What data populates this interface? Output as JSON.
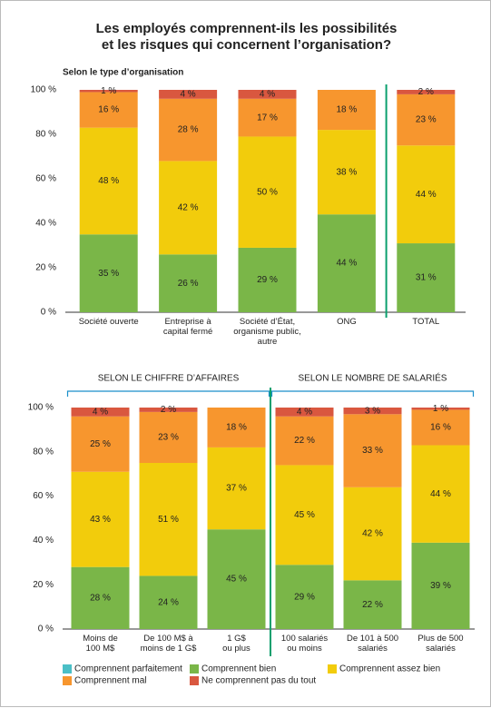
{
  "title": "Les employés comprennent-ils les possibilités\net les risques qui concernent l’organisation?",
  "chart_data": [
    {
      "type": "bar",
      "stacked": true,
      "subtitle": "Selon le type d’organisation",
      "categories": [
        "Société ouverte",
        "Entreprise à\ncapital fermé",
        "Société d’État,\norganisme public,\nautre",
        "ONG",
        "TOTAL"
      ],
      "ylim": [
        0,
        100
      ],
      "yticks": [
        {
          "value": 0,
          "label": "0 %"
        },
        {
          "value": 20,
          "label": "20 %"
        },
        {
          "value": 40,
          "label": "40 %"
        },
        {
          "value": 60,
          "label": "60 %"
        },
        {
          "value": 80,
          "label": "80 %"
        },
        {
          "value": 100,
          "label": "100 %"
        }
      ],
      "series": [
        {
          "name": "Comprennent parfaitement",
          "color": "#4bbfc6",
          "values": [
            null,
            null,
            null,
            null,
            null
          ],
          "value_labels": [
            null,
            null,
            null,
            null,
            null
          ]
        },
        {
          "name": "Comprennent bien",
          "color": "#7ab648",
          "values": [
            35,
            26,
            29,
            44,
            31
          ],
          "value_labels": [
            "35 %",
            "26 %",
            "29 %",
            "44 %",
            "31 %"
          ]
        },
        {
          "name": "Comprennent assez bien",
          "color": "#f2cc0c",
          "values": [
            48,
            42,
            50,
            38,
            44
          ],
          "value_labels": [
            "48 %",
            "42 %",
            "50 %",
            "38 %",
            "44 %"
          ]
        },
        {
          "name": "Comprennent mal",
          "color": "#f7962e",
          "values": [
            16,
            28,
            17,
            18,
            23
          ],
          "value_labels": [
            "16 %",
            "28 %",
            "17 %",
            "18 %",
            "23 %"
          ]
        },
        {
          "name": "Ne comprennent pas du tout",
          "color": "#d9573f",
          "values": [
            1,
            4,
            4,
            null,
            2
          ],
          "value_labels": [
            "1 %",
            "4 %",
            "4 %",
            null,
            "2 %"
          ]
        }
      ]
    },
    {
      "type": "bar",
      "stacked": true,
      "groups": [
        {
          "label": "SELON LE CHIFFRE D’AFFAIRES",
          "categories": [
            "Moins de\n100 M$",
            "De 100 M$ à\nmoins de 1 G$",
            "1 G$\nou plus"
          ]
        },
        {
          "label": "SELON LE NOMBRE DE SALARIÉS",
          "categories": [
            "100 salariés\nou moins",
            "De 101 à 500\nsalariés",
            "Plus de 500\nsalariés"
          ]
        }
      ],
      "ylim": [
        0,
        100
      ],
      "yticks": [
        {
          "value": 0,
          "label": "0 %"
        },
        {
          "value": 20,
          "label": "20 %"
        },
        {
          "value": 40,
          "label": "40 %"
        },
        {
          "value": 60,
          "label": "60 %"
        },
        {
          "value": 80,
          "label": "80 %"
        },
        {
          "value": 100,
          "label": "100 %"
        }
      ],
      "series": [
        {
          "name": "Comprennent parfaitement",
          "color": "#4bbfc6",
          "values": [
            null,
            null,
            null,
            null,
            null,
            null
          ],
          "value_labels": [
            null,
            null,
            null,
            null,
            null,
            null
          ]
        },
        {
          "name": "Comprennent bien",
          "color": "#7ab648",
          "values": [
            28,
            24,
            45,
            29,
            22,
            39
          ],
          "value_labels": [
            "28 %",
            "24 %",
            "45 %",
            "29 %",
            "22 %",
            "39 %"
          ]
        },
        {
          "name": "Comprennent assez bien",
          "color": "#f2cc0c",
          "values": [
            43,
            51,
            37,
            45,
            42,
            44
          ],
          "value_labels": [
            "43 %",
            "51 %",
            "37 %",
            "45 %",
            "42 %",
            "44 %"
          ]
        },
        {
          "name": "Comprennent mal",
          "color": "#f7962e",
          "values": [
            25,
            23,
            18,
            22,
            33,
            16
          ],
          "value_labels": [
            "25 %",
            "23 %",
            "18 %",
            "22 %",
            "33 %",
            "16 %"
          ]
        },
        {
          "name": "Ne comprennent pas du tout",
          "color": "#d9573f",
          "values": [
            4,
            2,
            null,
            4,
            3,
            1
          ],
          "value_labels": [
            "4 %",
            "2 %",
            null,
            "4 %",
            "3 %",
            "1 %"
          ]
        }
      ]
    }
  ]
}
